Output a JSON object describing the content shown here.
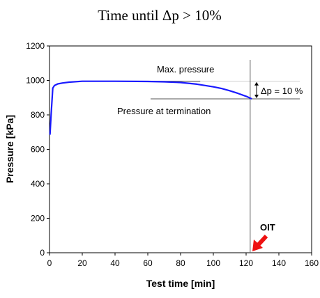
{
  "chart_data": {
    "type": "line",
    "title": "Time until Δp > 10%",
    "xlabel": "Test time [min]",
    "ylabel": "Pressure [kPa]",
    "xlim": [
      0,
      160
    ],
    "ylim": [
      0,
      1200
    ],
    "xticks": [
      0,
      20,
      40,
      60,
      80,
      100,
      120,
      140,
      160
    ],
    "yticks": [
      0,
      200,
      400,
      600,
      800,
      1000,
      1200
    ],
    "grid": false,
    "series": [
      {
        "color": "#1a1aff",
        "x": [
          0.3,
          1,
          2,
          3,
          5,
          8,
          12,
          20,
          40,
          60,
          70,
          80,
          90,
          100,
          105,
          110,
          115,
          120,
          123.5
        ],
        "y": [
          685,
          800,
          955,
          970,
          980,
          985,
          990,
          995,
          995,
          994,
          992,
          988,
          978,
          963,
          953,
          940,
          925,
          908,
          893
        ]
      }
    ],
    "reference_lines": {
      "max_pressure": 995,
      "termination_pressure": 893,
      "oit_time": 122.5
    },
    "annotations": {
      "max_pressure_label": "Max. pressure",
      "termination_label": "Pressure at termination",
      "delta_label": "Δp = 10 %",
      "oit_label": "OIT"
    },
    "colors": {
      "curve": "#1a1aff",
      "oit_arrow": "#ee1111",
      "reference": "#555555",
      "axis": "#000000"
    }
  }
}
